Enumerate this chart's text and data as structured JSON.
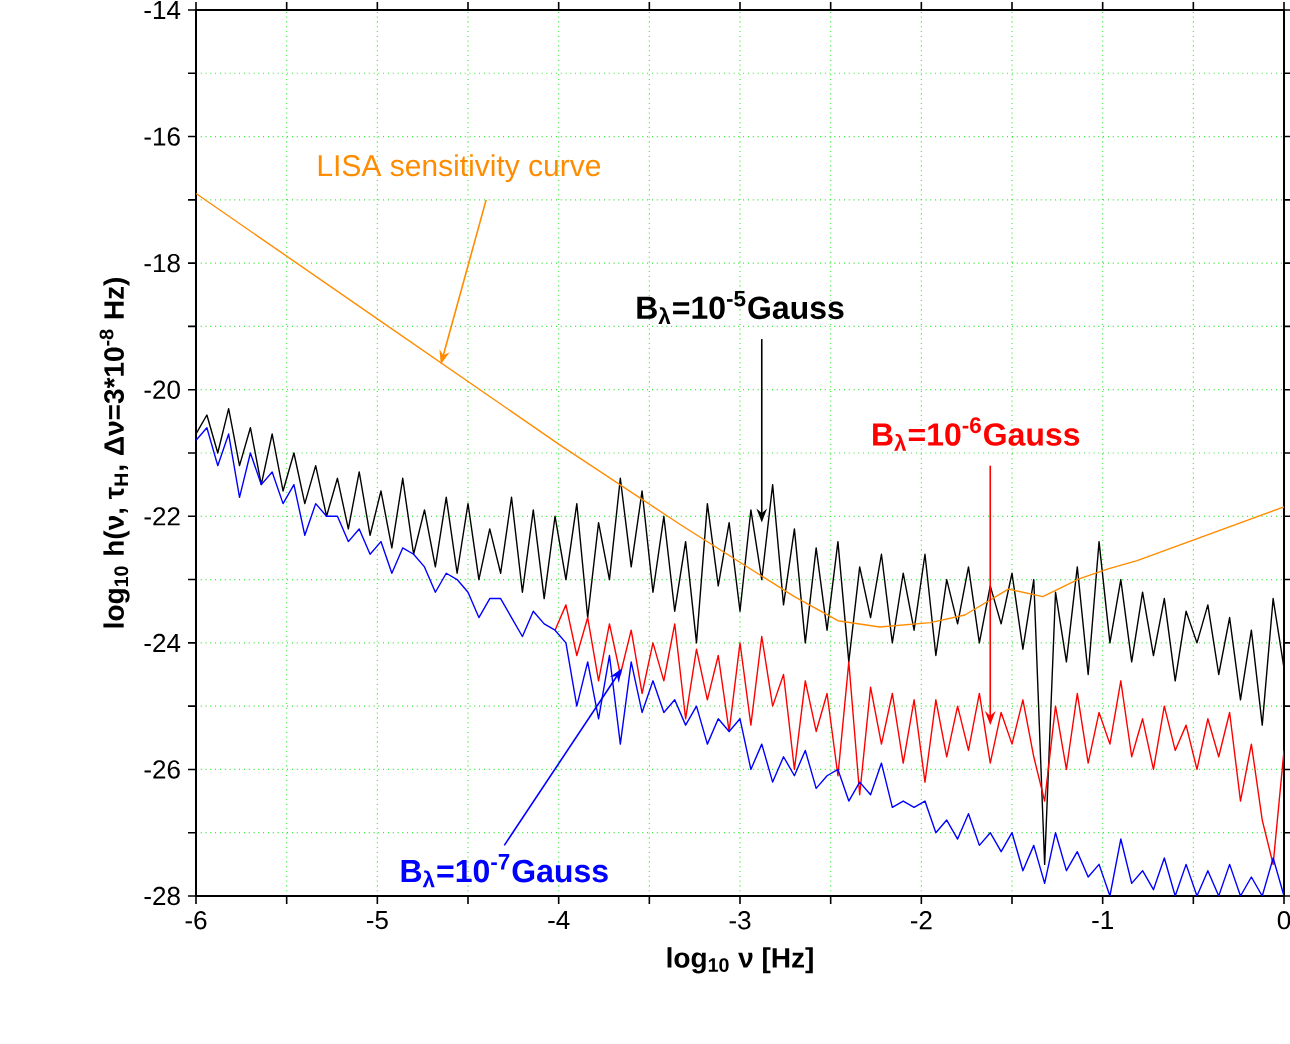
{
  "chart_data": {
    "type": "line",
    "xlabel": "log$_{10}$ ν [Hz]",
    "ylabel": "log$_{10}$ h(ν, τ$_{H}$, Δν=3*10$^{-8}$ Hz)",
    "xlim": [
      -6,
      0
    ],
    "ylim": [
      -28,
      -14
    ],
    "xticks": [
      -6,
      {
        "value": -5.5,
        "label": null
      },
      -5,
      {
        "value": -4.5,
        "label": null
      },
      -4,
      {
        "value": -3.5,
        "label": null
      },
      -3,
      {
        "value": -2.5,
        "label": null
      },
      -2,
      {
        "value": -1.5,
        "label": null
      },
      -1,
      {
        "value": -0.5,
        "label": null
      },
      0
    ],
    "yticks": [
      -28,
      {
        "value": -27,
        "label": null
      },
      -26,
      {
        "value": -25,
        "label": null
      },
      -24,
      {
        "value": -23,
        "label": null
      },
      -22,
      {
        "value": -21,
        "label": null
      },
      -20,
      {
        "value": -19,
        "label": null
      },
      -18,
      {
        "value": -17,
        "label": null
      },
      -16,
      {
        "value": -15,
        "label": null
      },
      -14
    ],
    "grid": true,
    "x": [
      -6.0,
      -5.94,
      -5.88,
      -5.82,
      -5.76,
      -5.7,
      -5.64,
      -5.58,
      -5.52,
      -5.46,
      -5.4,
      -5.34,
      -5.28,
      -5.22,
      -5.16,
      -5.1,
      -5.04,
      -4.98,
      -4.92,
      -4.86,
      -4.8,
      -4.74,
      -4.68,
      -4.62,
      -4.56,
      -4.5,
      -4.44,
      -4.38,
      -4.32,
      -4.26,
      -4.2,
      -4.14,
      -4.08,
      -4.02,
      -3.96,
      -3.9,
      -3.84,
      -3.78,
      -3.72,
      -3.66,
      -3.6,
      -3.54,
      -3.48,
      -3.42,
      -3.36,
      -3.3,
      -3.24,
      -3.18,
      -3.12,
      -3.06,
      -3.0,
      -2.94,
      -2.88,
      -2.82,
      -2.76,
      -2.7,
      -2.64,
      -2.58,
      -2.52,
      -2.46,
      -2.4,
      -2.34,
      -2.28,
      -2.22,
      -2.16,
      -2.1,
      -2.04,
      -1.98,
      -1.92,
      -1.86,
      -1.8,
      -1.74,
      -1.68,
      -1.62,
      -1.56,
      -1.5,
      -1.44,
      -1.38,
      -1.32,
      -1.26,
      -1.2,
      -1.14,
      -1.08,
      -1.02,
      -0.96,
      -0.9,
      -0.84,
      -0.78,
      -0.72,
      -0.66,
      -0.6,
      -0.54,
      -0.48,
      -0.42,
      -0.36,
      -0.3,
      -0.24,
      -0.18,
      -0.12,
      -0.06,
      0.0
    ],
    "series": [
      {
        "color": "#000000",
        "values": [
          -20.7,
          -20.4,
          -21.0,
          -20.3,
          -21.2,
          -20.6,
          -21.5,
          -20.7,
          -21.6,
          -21.0,
          -21.8,
          -21.2,
          -22.0,
          -21.4,
          -22.2,
          -21.3,
          -22.3,
          -21.6,
          -22.5,
          -21.4,
          -22.6,
          -21.9,
          -22.8,
          -21.7,
          -22.9,
          -21.8,
          -23.0,
          -22.2,
          -22.9,
          -21.7,
          -23.2,
          -21.9,
          -23.3,
          -22.0,
          -23.0,
          -21.8,
          -23.6,
          -22.1,
          -23.0,
          -21.4,
          -22.8,
          -21.6,
          -23.2,
          -22.0,
          -23.5,
          -22.4,
          -24.0,
          -21.8,
          -23.1,
          -22.1,
          -23.5,
          -21.9,
          -23.0,
          -21.5,
          -23.4,
          -22.2,
          -24.0,
          -22.5,
          -23.8,
          -22.4,
          -24.3,
          -22.8,
          -23.6,
          -22.6,
          -24.0,
          -22.9,
          -23.8,
          -22.6,
          -24.2,
          -23.0,
          -23.7,
          -22.8,
          -24.0,
          -23.1,
          -23.7,
          -22.9,
          -24.1,
          -23.0,
          -27.5,
          -23.2,
          -24.3,
          -22.8,
          -24.5,
          -22.4,
          -24.0,
          -23.0,
          -24.3,
          -23.2,
          -24.2,
          -23.3,
          -24.6,
          -23.5,
          -24.0,
          -23.4,
          -24.5,
          -23.6,
          -24.9,
          -23.8,
          -25.3,
          -23.3,
          -24.4
        ]
      },
      {
        "color": "#ff0000",
        "values": [
          null,
          null,
          null,
          null,
          null,
          null,
          null,
          null,
          null,
          null,
          null,
          null,
          null,
          null,
          null,
          null,
          null,
          null,
          null,
          null,
          null,
          null,
          null,
          null,
          null,
          null,
          null,
          null,
          null,
          null,
          null,
          null,
          null,
          -23.8,
          -23.4,
          -24.2,
          -23.6,
          -24.6,
          -23.7,
          -24.5,
          -23.8,
          -24.8,
          -24.0,
          -24.6,
          -23.7,
          -25.2,
          -24.1,
          -24.9,
          -24.2,
          -25.4,
          -24.0,
          -25.3,
          -23.9,
          -25.0,
          -24.5,
          -26.0,
          -24.6,
          -25.4,
          -24.8,
          -26.1,
          -24.3,
          -26.4,
          -24.7,
          -25.6,
          -24.8,
          -25.9,
          -24.9,
          -26.2,
          -24.9,
          -25.8,
          -25.0,
          -25.7,
          -24.8,
          -25.9,
          -25.1,
          -25.6,
          -24.9,
          -25.8,
          -26.5,
          -25.0,
          -26.0,
          -24.8,
          -25.9,
          -25.1,
          -25.6,
          -24.6,
          -25.8,
          -25.2,
          -26.0,
          -25.0,
          -25.7,
          -25.3,
          -26.0,
          -25.2,
          -25.8,
          -25.1,
          -26.5,
          -25.6,
          -26.8,
          -27.5,
          -25.7
        ]
      },
      {
        "color": "#0000ff",
        "values": [
          -20.8,
          -20.6,
          -21.2,
          -20.7,
          -21.7,
          -21.0,
          -21.5,
          -21.3,
          -21.8,
          -21.5,
          -22.3,
          -21.8,
          -22.0,
          -22.0,
          -22.4,
          -22.2,
          -22.6,
          -22.4,
          -22.9,
          -22.5,
          -22.6,
          -22.8,
          -23.2,
          -22.9,
          -23.0,
          -23.2,
          -23.6,
          -23.3,
          -23.3,
          -23.6,
          -23.9,
          -23.5,
          -23.7,
          -23.8,
          -24.0,
          -25.0,
          -24.3,
          -25.2,
          -24.2,
          -25.6,
          -24.3,
          -25.1,
          -24.6,
          -25.1,
          -24.9,
          -25.3,
          -25.0,
          -25.6,
          -25.2,
          -25.4,
          -25.2,
          -26.0,
          -25.6,
          -26.2,
          -25.8,
          -26.1,
          -25.7,
          -26.3,
          -26.1,
          -26.0,
          -26.5,
          -26.2,
          -26.4,
          -25.9,
          -26.6,
          -26.5,
          -26.6,
          -26.5,
          -27.0,
          -26.8,
          -27.1,
          -26.7,
          -27.2,
          -27.0,
          -27.3,
          -27.0,
          -27.6,
          -27.2,
          -27.8,
          -27.0,
          -27.6,
          -27.3,
          -27.7,
          -27.5,
          -28.0,
          -27.1,
          -27.8,
          -27.6,
          -27.9,
          -27.4,
          -28.0,
          -27.5,
          -28.0,
          -27.6,
          -28.0,
          -27.5,
          -28.0,
          -27.7,
          -28.0,
          -27.4,
          -28.0
        ]
      },
      {
        "color": "#ff8c00",
        "x": [
          -6.0,
          -5.0,
          -4.0,
          -3.33,
          -2.7,
          -2.46,
          -2.23,
          -1.95,
          -1.76,
          -1.52,
          -1.33,
          -1.13,
          -0.97,
          -0.81,
          0.0
        ],
        "values": [
          -16.9,
          -18.88,
          -20.86,
          -22.13,
          -23.27,
          -23.65,
          -23.75,
          -23.68,
          -23.56,
          -23.15,
          -23.27,
          -22.99,
          -22.83,
          -22.7,
          -21.85
        ]
      }
    ],
    "annotations": [
      {
        "text": "LISA sensitivity curve",
        "x": -4.65,
        "y": -19.6
      },
      {
        "text": "B$_{λ}$=10$^{-5}$Gauss",
        "x": -2.88,
        "y": -22.1
      },
      {
        "text": "B$_{λ}$=10$^{-6}$Gauss",
        "x": -1.62,
        "y": -25.3
      },
      {
        "text": "B$_{λ}$=10$^{-7}$Gauss",
        "x": -3.65,
        "y": -24.4
      }
    ]
  }
}
